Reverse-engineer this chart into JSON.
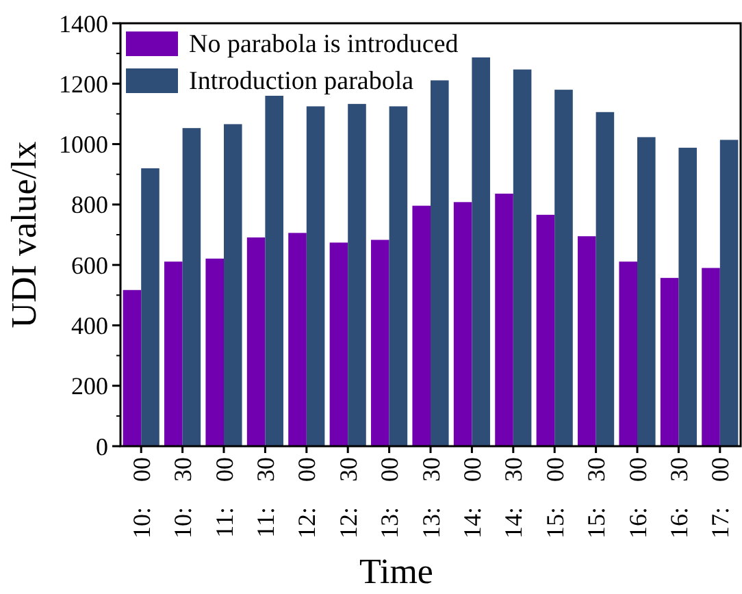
{
  "chart_data": {
    "type": "bar",
    "xlabel": "Time",
    "ylabel": "UDI value/lx",
    "categories": [
      "10: 00",
      "10: 30",
      "11: 00",
      "11: 30",
      "12: 00",
      "12: 30",
      "13: 00",
      "13: 30",
      "14: 00",
      "14: 30",
      "15: 00",
      "15: 30",
      "16: 00",
      "16: 30",
      "17: 00"
    ],
    "series": [
      {
        "name": "No parabola is introduced",
        "color": "#7000b0",
        "values": [
          517,
          611,
          621,
          691,
          706,
          674,
          683,
          796,
          808,
          836,
          766,
          695,
          611,
          557,
          590
        ]
      },
      {
        "name": "Introduction parabola",
        "color": "#2e4e78",
        "values": [
          920,
          1053,
          1066,
          1160,
          1125,
          1133,
          1125,
          1211,
          1287,
          1247,
          1180,
          1106,
          1023,
          988,
          1014
        ]
      }
    ],
    "ylim": [
      0,
      1400
    ],
    "yticks": [
      0,
      200,
      400,
      600,
      800,
      1000,
      1200,
      1400
    ],
    "grid": false,
    "legend": "top left"
  }
}
